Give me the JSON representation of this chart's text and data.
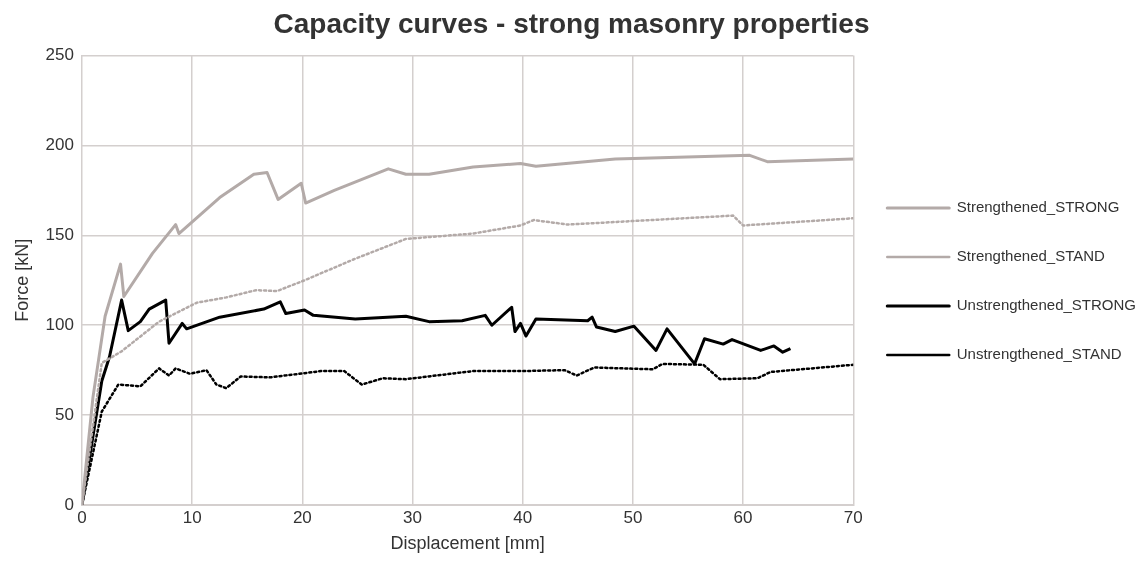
{
  "chart_data": {
    "type": "line",
    "title": "Capacity curves - strong masonry properties",
    "xlabel": "Displacement [mm]",
    "ylabel": "Force [kN]",
    "xlim": [
      0,
      70
    ],
    "xticks": [
      0,
      10,
      20,
      30,
      40,
      50,
      60,
      70
    ],
    "ylim": [
      0,
      250
    ],
    "yticks": [
      0,
      50,
      100,
      150,
      200,
      250
    ],
    "grid": true,
    "legend": "right",
    "marker": "none",
    "series": [
      {
        "name": "Strengthened_STRONG",
        "color": "#b3aaa8",
        "line_style": "solid",
        "x": [
          0,
          1,
          2.1,
          3.5,
          3.8,
          6.4,
          8.5,
          8.8,
          12.5,
          15.6,
          16.8,
          17.8,
          19.9,
          20.3,
          22.9,
          27.8,
          29.4,
          31.5,
          35.5,
          39.8,
          41.2,
          48.4,
          60.6,
          62.2,
          70
        ],
        "values": [
          0,
          60,
          105,
          134,
          116,
          140,
          156,
          151,
          171,
          184,
          185,
          170,
          179,
          168,
          175,
          187,
          184,
          184,
          188,
          190,
          188.5,
          192.5,
          194.5,
          191,
          192.5
        ]
      },
      {
        "name": "Strengthened_STAND",
        "color": "#b3aaa8",
        "line_style": "dotted",
        "x": [
          0,
          1.8,
          3.6,
          7,
          10.4,
          13.1,
          15.8,
          17.7,
          20.2,
          24.8,
          29.4,
          35.5,
          39.8,
          41,
          44.1,
          59.1,
          60,
          70
        ],
        "values": [
          0,
          79,
          85.5,
          102,
          112.5,
          115.5,
          119.5,
          119,
          125,
          137,
          148,
          151,
          155.5,
          158.5,
          156,
          161,
          155.5,
          159.5
        ]
      },
      {
        "name": "Unstrengthened_STRONG",
        "color": "#000000",
        "line_style": "solid",
        "x": [
          0,
          1.8,
          2.5,
          3.6,
          4.2,
          5.3,
          6.1,
          7.6,
          7.9,
          9.1,
          9.5,
          12.5,
          16.5,
          18,
          18.5,
          20.2,
          21,
          24.8,
          29.4,
          31.5,
          34.5,
          36.6,
          37.2,
          39,
          39.3,
          39.8,
          40.3,
          41.2,
          45.9,
          46.3,
          46.7,
          48.4,
          50.1,
          52.1,
          53.1,
          55.6,
          56.5,
          58.2,
          59,
          61.6,
          62.8,
          63.6,
          64.3
        ],
        "values": [
          0,
          69,
          82.5,
          114,
          97,
          102,
          109,
          114,
          90,
          101,
          98,
          104.5,
          109,
          113,
          106.5,
          108.5,
          105.5,
          103.5,
          105,
          102,
          102.5,
          105.5,
          100,
          110,
          96.5,
          101,
          94,
          103.5,
          102.5,
          104.5,
          99,
          96.5,
          99.5,
          86,
          98,
          78.5,
          92.5,
          89.5,
          92,
          86,
          88.5,
          85,
          87
        ]
      },
      {
        "name": "Unstrengthened_STAND",
        "color": "#000000",
        "line_style": "dotted",
        "x": [
          0,
          1.8,
          3.3,
          5.3,
          7,
          7.9,
          8.5,
          9.8,
          11.3,
          12.2,
          13.1,
          14.4,
          17.1,
          21.7,
          23.8,
          25.4,
          27.3,
          29.4,
          35.5,
          39.8,
          43.8,
          44.9,
          46.5,
          51.8,
          52.7,
          56.4,
          57.9,
          61.3,
          62.5,
          70
        ],
        "values": [
          0,
          52,
          67,
          66,
          76,
          72,
          76,
          73,
          75,
          67,
          65,
          71.5,
          71,
          74.5,
          74.5,
          67,
          70.5,
          70,
          74.5,
          74.5,
          75,
          72,
          76.5,
          75.5,
          78.5,
          78,
          70,
          70.5,
          74,
          78
        ]
      }
    ]
  }
}
